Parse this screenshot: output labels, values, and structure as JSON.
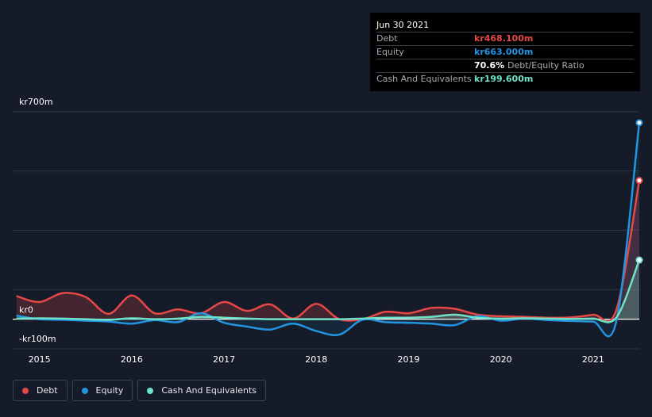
{
  "tooltip": {
    "date": "Jun 30 2021",
    "debt_label": "Debt",
    "debt_value": "kr468.100m",
    "equity_label": "Equity",
    "equity_value": "kr663.000m",
    "ratio_value": "70.6%",
    "ratio_label": "Debt/Equity Ratio",
    "cash_label": "Cash And Equivalents",
    "cash_value": "kr199.600m"
  },
  "colors": {
    "debt": "#e64848",
    "equity": "#2394df",
    "cash": "#6ee2c9",
    "grid": "#2e3440",
    "text": "#ffffff"
  },
  "chart_data": {
    "type": "line",
    "ylim": [
      -100,
      700
    ],
    "y_tick_labels": [
      "kr700m",
      "kr0",
      "-kr100m"
    ],
    "y_ticks": [
      700,
      0,
      -100
    ],
    "x_tick_labels": [
      "2015",
      "2016",
      "2017",
      "2018",
      "2019",
      "2020",
      "2021"
    ],
    "x_ticks": [
      2015,
      2016,
      2017,
      2018,
      2019,
      2020,
      2021
    ],
    "xlim": [
      2014.71,
      2021.5
    ],
    "grid": true,
    "legend_position": "bottom-left",
    "series": [
      {
        "name": "Debt",
        "color_key": "debt",
        "x": [
          2014.75,
          2015.0,
          2015.25,
          2015.5,
          2015.75,
          2016.0,
          2016.25,
          2016.5,
          2016.75,
          2017.0,
          2017.25,
          2017.5,
          2017.75,
          2018.0,
          2018.25,
          2018.5,
          2018.75,
          2019.0,
          2019.25,
          2019.5,
          2019.75,
          2020.0,
          2020.25,
          2020.5,
          2020.75,
          2021.0,
          2021.25,
          2021.5
        ],
        "y": [
          78,
          58,
          88,
          75,
          18,
          80,
          20,
          33,
          20,
          58,
          28,
          50,
          2,
          52,
          0,
          0,
          25,
          20,
          38,
          35,
          15,
          10,
          8,
          5,
          6,
          15,
          30,
          468.1
        ]
      },
      {
        "name": "Equity",
        "color_key": "equity",
        "x": [
          2014.75,
          2015.0,
          2015.25,
          2015.5,
          2015.75,
          2016.0,
          2016.25,
          2016.5,
          2016.75,
          2017.0,
          2017.25,
          2017.5,
          2017.75,
          2018.0,
          2018.25,
          2018.5,
          2018.75,
          2019.0,
          2019.25,
          2019.5,
          2019.75,
          2020.0,
          2020.25,
          2020.5,
          2020.75,
          2021.0,
          2021.25,
          2021.5
        ],
        "y": [
          12,
          0,
          -2,
          -5,
          -8,
          -15,
          -3,
          -10,
          20,
          -12,
          -25,
          -35,
          -15,
          -40,
          -52,
          -2,
          -10,
          -12,
          -15,
          -20,
          10,
          -5,
          2,
          -3,
          -6,
          -8,
          -8,
          663.0
        ]
      },
      {
        "name": "Cash And Equivalents",
        "color_key": "cash",
        "x": [
          2014.75,
          2015.0,
          2015.25,
          2015.5,
          2015.75,
          2016.0,
          2016.25,
          2016.5,
          2016.75,
          2017.0,
          2017.25,
          2017.5,
          2017.75,
          2018.0,
          2018.25,
          2018.5,
          2018.75,
          2019.0,
          2019.25,
          2019.5,
          2019.75,
          2020.0,
          2020.25,
          2020.5,
          2020.75,
          2021.0,
          2021.25,
          2021.5
        ],
        "y": [
          2,
          3,
          2,
          0,
          -2,
          3,
          0,
          2,
          8,
          5,
          2,
          0,
          0,
          0,
          0,
          2,
          5,
          5,
          8,
          15,
          5,
          2,
          3,
          2,
          1,
          2,
          5,
          199.6
        ]
      }
    ]
  },
  "legend": [
    {
      "label": "Debt",
      "color_key": "debt"
    },
    {
      "label": "Equity",
      "color_key": "equity"
    },
    {
      "label": "Cash And Equivalents",
      "color_key": "cash"
    }
  ]
}
